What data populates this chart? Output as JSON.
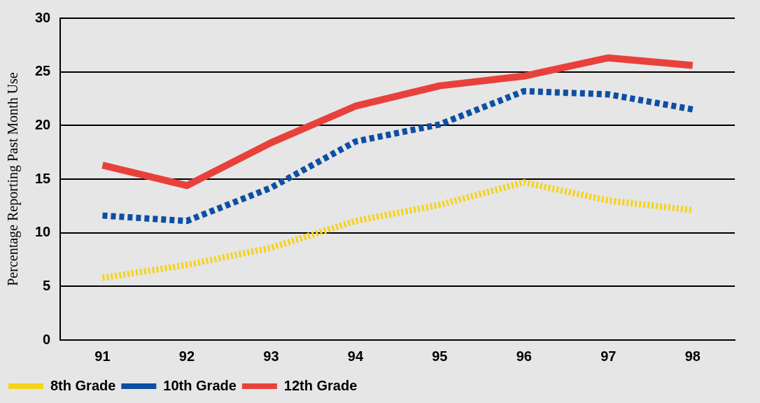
{
  "chart_data": {
    "type": "line",
    "ylabel": "Percentage Reporting Past Month Use",
    "categories": [
      "91",
      "92",
      "93",
      "94",
      "95",
      "96",
      "97",
      "98"
    ],
    "series": [
      {
        "name": "8th Grade",
        "color": "#f5d31a",
        "line_style": "dotted",
        "values": [
          5.8,
          7.0,
          8.6,
          11.1,
          12.6,
          14.7,
          13.0,
          12.1
        ]
      },
      {
        "name": "10th Grade",
        "color": "#0d4fa3",
        "line_style": "dashed",
        "values": [
          11.6,
          11.1,
          14.2,
          18.5,
          20.1,
          23.2,
          22.9,
          21.5
        ]
      },
      {
        "name": "12th Grade",
        "color": "#e8413c",
        "line_style": "solid",
        "values": [
          16.3,
          14.4,
          18.4,
          21.8,
          23.7,
          24.6,
          26.3,
          25.6
        ]
      }
    ],
    "ylim": [
      0,
      30
    ],
    "yticks": [
      0,
      5,
      10,
      15,
      20,
      25,
      30
    ],
    "grid": "y",
    "legend": "bottom left",
    "marker": "none"
  }
}
